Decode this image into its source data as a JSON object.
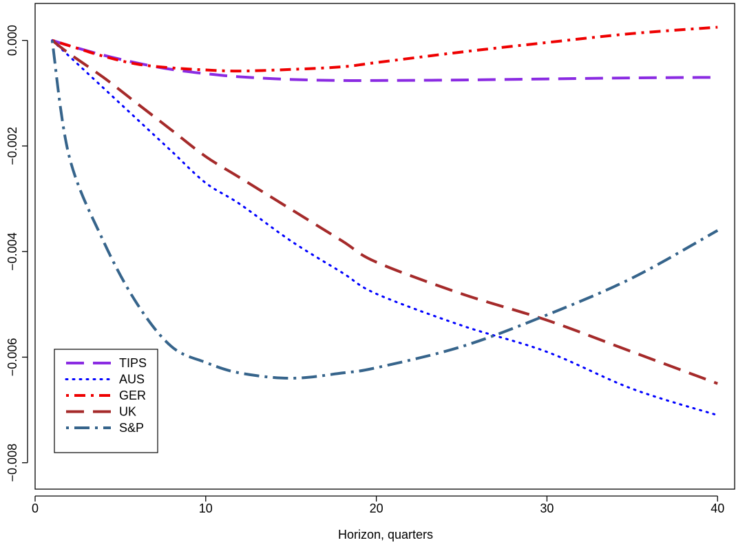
{
  "chart_data": {
    "type": "line",
    "title": "",
    "xlabel": "Horizon, quarters",
    "ylabel": "",
    "xlim": [
      0,
      41
    ],
    "ylim": [
      -0.0085,
      0.0007
    ],
    "x_ticks": [
      0,
      10,
      20,
      30,
      40
    ],
    "y_ticks": [
      0,
      -0.002,
      -0.004,
      -0.006,
      -0.008
    ],
    "x_tick_labels": [
      "0",
      "10",
      "20",
      "30",
      "40"
    ],
    "y_tick_labels": [
      "0.000",
      "−0.002",
      "−0.004",
      "−0.006",
      "−0.008"
    ],
    "grid": false,
    "legend_position": "bottom-left",
    "x": [
      1,
      2,
      4,
      6,
      8,
      10,
      12,
      15,
      18,
      20,
      25,
      30,
      35,
      40
    ],
    "series": [
      {
        "name": "TIPS",
        "color": "#8a2be2",
        "dash": "long-dash",
        "values": [
          0,
          -0.0001,
          -0.00028,
          -0.00043,
          -0.00055,
          -0.00063,
          -0.00069,
          -0.00074,
          -0.00076,
          -0.00076,
          -0.00075,
          -0.00073,
          -0.00071,
          -0.0007
        ]
      },
      {
        "name": "AUS",
        "color": "#0000ff",
        "dash": "dotted",
        "values": [
          0,
          -0.0003,
          -0.0009,
          -0.0015,
          -0.0021,
          -0.0027,
          -0.0031,
          -0.0038,
          -0.0044,
          -0.0048,
          -0.0054,
          -0.0059,
          -0.0066,
          -0.0071
        ]
      },
      {
        "name": "GER",
        "color": "#ee0000",
        "dash": "dot-dash",
        "values": [
          0,
          -0.0001,
          -0.0003,
          -0.00045,
          -0.00052,
          -0.00056,
          -0.00058,
          -0.00055,
          -0.0005,
          -0.00042,
          -0.00022,
          -4e-05,
          0.00013,
          0.00025
        ]
      },
      {
        "name": "UK",
        "color": "#a52a2a",
        "dash": "long-dash",
        "values": [
          0,
          -0.00025,
          -0.0007,
          -0.0012,
          -0.0017,
          -0.0022,
          -0.0026,
          -0.0032,
          -0.0038,
          -0.0042,
          -0.0048,
          -0.0053,
          -0.0059,
          -0.0065
        ]
      },
      {
        "name": "S&P",
        "color": "#36648b",
        "dash": "dot-long-dash",
        "values": [
          0,
          -0.0022,
          -0.0038,
          -0.005,
          -0.0058,
          -0.0061,
          -0.0063,
          -0.0064,
          -0.0063,
          -0.0062,
          -0.0058,
          -0.0052,
          -0.0045,
          -0.0036
        ]
      }
    ]
  }
}
